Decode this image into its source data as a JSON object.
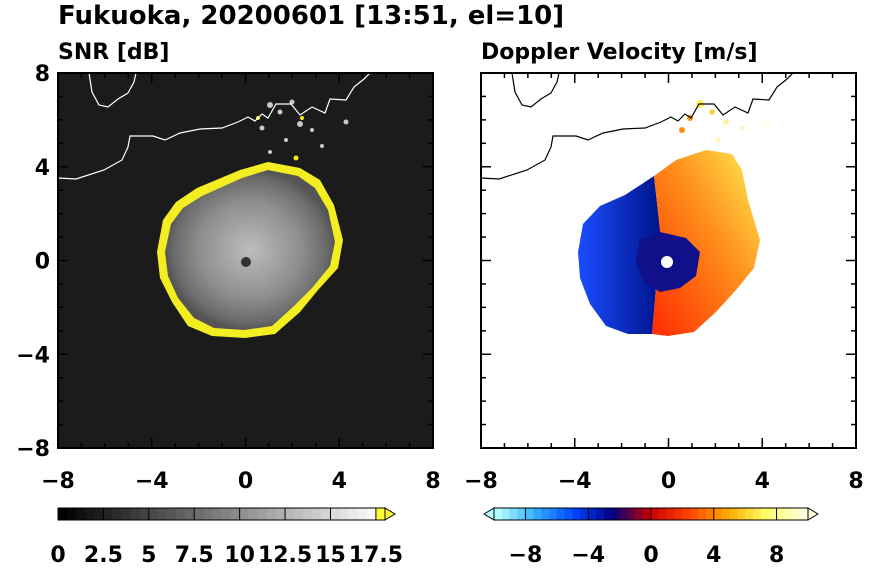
{
  "figure": {
    "title": "Fukuoka, 20200601 [13:51, el=10]"
  },
  "chart_data": [
    {
      "type": "heatmap",
      "title": "SNR [dB]",
      "xlim": [
        -8,
        8
      ],
      "ylim": [
        -8,
        8
      ],
      "x_ticks": [
        "−8",
        "−4",
        "0",
        "4",
        "8"
      ],
      "y_ticks": [
        "8",
        "4",
        "0",
        "−4",
        "−8"
      ],
      "background": "#1a1a1a",
      "colorbar": {
        "range": [
          0,
          18
        ],
        "ticks": [
          "0",
          "2.5",
          "5",
          "7.5",
          "10",
          "12.5",
          "15",
          "17.5"
        ],
        "colors": [
          "#000000",
          "#ffffff",
          "#ffff33"
        ]
      }
    },
    {
      "type": "heatmap",
      "title": "Doppler Velocity [m/s]",
      "xlim": [
        -8,
        8
      ],
      "ylim": [
        -8,
        8
      ],
      "x_ticks": [
        "−8",
        "−4",
        "0",
        "4",
        "8"
      ],
      "y_ticks": [],
      "background": "#ffffff",
      "colorbar": {
        "range": [
          -10,
          10
        ],
        "ticks": [
          "−8",
          "−4",
          "0",
          "4",
          "8"
        ],
        "colors": [
          "#b3ffff",
          "#33aaff",
          "#0044ff",
          "#000080",
          "#cc0000",
          "#ff4400",
          "#ffaa00",
          "#ffff66",
          "#ffffdd"
        ]
      }
    }
  ]
}
